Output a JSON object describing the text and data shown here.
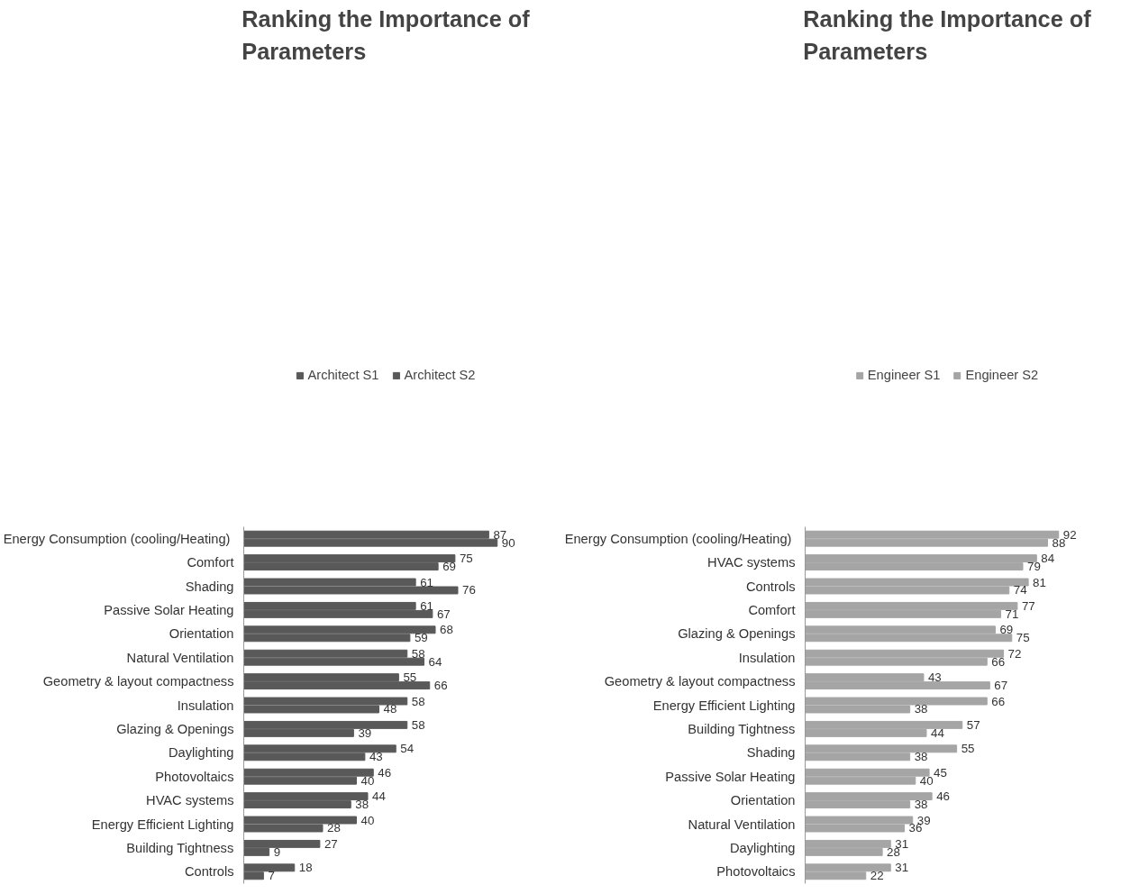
{
  "chart_data": [
    {
      "type": "bar",
      "orientation": "horizontal",
      "title": "Ranking the Importance of Parameters",
      "categories": [
        "Energy Consumption  (cooling/Heating)",
        "Comfort",
        "Shading",
        "Passive Solar Heating",
        "Orientation",
        "Natural Ventilation",
        "Geometry & layout compactness",
        "Insulation",
        "Glazing & Openings",
        "Daylighting",
        "Photovoltaics",
        "HVAC systems",
        "Energy Efficient Lighting",
        "Building Tightness",
        "Controls"
      ],
      "series": [
        {
          "name": "Architect S1",
          "color": "#595959",
          "values": [
            87,
            75,
            61,
            61,
            68,
            58,
            55,
            58,
            58,
            54,
            46,
            44,
            40,
            27,
            18
          ]
        },
        {
          "name": "Architect S2",
          "color": "#595959",
          "values": [
            90,
            69,
            76,
            67,
            59,
            64,
            66,
            48,
            39,
            43,
            40,
            38,
            28,
            9,
            7
          ]
        }
      ],
      "data_labels": true,
      "legend": "top",
      "grid": false,
      "tick_labels": "y"
    },
    {
      "type": "bar",
      "orientation": "horizontal",
      "title": "Ranking the Importance of Parameters",
      "categories": [
        "Energy Consumption  (cooling/Heating)",
        "HVAC systems",
        "Controls",
        "Comfort",
        "Glazing & Openings",
        "Insulation",
        "Geometry & layout compactness",
        "Energy Efficient Lighting",
        "Building Tightness",
        "Shading",
        "Passive Solar Heating",
        "Orientation",
        "Natural Ventilation",
        "Daylighting",
        "Photovoltaics"
      ],
      "series": [
        {
          "name": "Engineer S1",
          "color": "#a5a5a5",
          "values": [
            92,
            84,
            81,
            77,
            69,
            72,
            43,
            66,
            57,
            55,
            45,
            46,
            39,
            31,
            31
          ]
        },
        {
          "name": "Engineer S2",
          "color": "#a5a5a5",
          "values": [
            88,
            79,
            74,
            71,
            75,
            66,
            67,
            38,
            44,
            38,
            40,
            38,
            36,
            28,
            22
          ]
        }
      ],
      "data_labels": true,
      "legend": "top",
      "grid": false,
      "tick_labels": "y"
    }
  ]
}
